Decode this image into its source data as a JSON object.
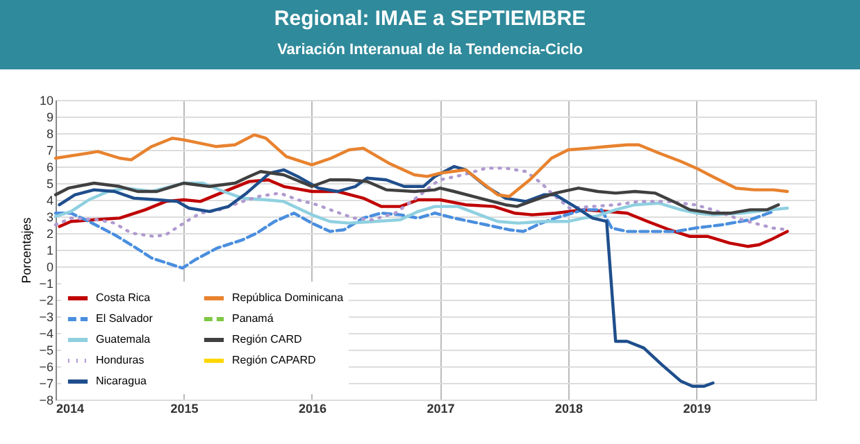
{
  "chart_data": {
    "type": "line",
    "title": "Regional: IMAE a SEPTIEMBRE",
    "subtitle": "Variación Interanual de la Tendencia-Ciclo",
    "ylabel": "Porcentajes",
    "xlim": [
      2014,
      2019.93
    ],
    "xticks": [
      2014,
      2015,
      2016,
      2017,
      2018,
      2019
    ],
    "ylim": [
      -8,
      10
    ],
    "yticks": [
      -8,
      -7,
      -6,
      -5,
      -4,
      -3,
      -2,
      -1,
      0,
      1,
      2,
      3,
      4,
      5,
      6,
      7,
      8,
      9,
      10
    ],
    "grid": true,
    "legend": "bottom left",
    "marker": "none",
    "series": [
      {
        "name": "Costa Rica",
        "color": "#c00000",
        "line_style": "solid",
        "x": [
          2014.03,
          2014.12,
          2014.3,
          2014.5,
          2014.7,
          2014.86,
          2015.0,
          2015.13,
          2015.35,
          2015.51,
          2015.66,
          2015.78,
          2016.0,
          2016.2,
          2016.4,
          2016.54,
          2016.69,
          2016.83,
          2016.96,
          2017.0,
          2017.2,
          2017.42,
          2017.58,
          2017.72,
          2017.9,
          2018.12,
          2018.3,
          2018.46,
          2018.62,
          2018.79,
          2018.95,
          2019.09,
          2019.26,
          2019.4,
          2019.49,
          2019.58,
          2019.71
        ],
        "values": [
          2.4,
          2.7,
          2.8,
          2.9,
          3.4,
          3.9,
          4.0,
          3.9,
          4.6,
          5.1,
          5.2,
          4.8,
          4.5,
          4.5,
          4.1,
          3.6,
          3.6,
          4.0,
          4.0,
          4.0,
          3.7,
          3.6,
          3.2,
          3.1,
          3.2,
          3.4,
          3.3,
          3.2,
          2.7,
          2.2,
          1.8,
          1.8,
          1.4,
          1.2,
          1.3,
          1.6,
          2.1
        ]
      },
      {
        "name": "El Salvador",
        "color": "#4a8ede",
        "line_style": "dashed",
        "x": [
          2014.0,
          2014.12,
          2014.26,
          2014.46,
          2014.61,
          2014.75,
          2014.91,
          2014.99,
          2015.09,
          2015.26,
          2015.46,
          2015.57,
          2015.71,
          2015.86,
          2016.0,
          2016.14,
          2016.25,
          2016.4,
          2016.54,
          2016.69,
          2016.83,
          2016.96,
          2017.11,
          2017.36,
          2017.54,
          2017.65,
          2017.79,
          2017.9,
          2018.12,
          2018.26,
          2018.34,
          2018.46,
          2018.7,
          2018.84,
          2018.99,
          2019.2,
          2019.42,
          2019.6
        ],
        "values": [
          3.2,
          3.2,
          2.7,
          1.9,
          1.2,
          0.5,
          0.1,
          -0.1,
          0.4,
          1.1,
          1.6,
          2.0,
          2.7,
          3.2,
          2.6,
          2.1,
          2.2,
          2.9,
          3.2,
          3.1,
          2.9,
          3.2,
          2.9,
          2.5,
          2.2,
          2.1,
          2.6,
          2.9,
          3.4,
          3.4,
          2.3,
          2.1,
          2.1,
          2.1,
          2.3,
          2.5,
          2.8,
          3.3
        ]
      },
      {
        "name": "Guatemala",
        "color": "#8fd0e0",
        "line_style": "solid",
        "x": [
          2014.0,
          2014.12,
          2014.26,
          2014.41,
          2014.55,
          2014.75,
          2015.0,
          2015.15,
          2015.31,
          2015.46,
          2015.64,
          2015.78,
          2016.0,
          2016.14,
          2016.29,
          2016.49,
          2016.69,
          2016.83,
          2016.96,
          2017.14,
          2017.31,
          2017.45,
          2017.61,
          2017.81,
          2018.0,
          2018.12,
          2018.21,
          2018.37,
          2018.52,
          2018.71,
          2018.88,
          2019.0,
          2019.13,
          2019.35,
          2019.58,
          2019.71
        ],
        "values": [
          3.0,
          3.3,
          4.0,
          4.5,
          4.7,
          4.5,
          5.0,
          5.0,
          4.5,
          4.1,
          4.0,
          3.9,
          3.1,
          2.7,
          2.6,
          2.7,
          2.8,
          3.3,
          3.6,
          3.6,
          3.1,
          2.7,
          2.6,
          2.7,
          2.7,
          2.9,
          3.0,
          3.4,
          3.7,
          3.8,
          3.4,
          3.2,
          3.1,
          3.2,
          3.4,
          3.5
        ]
      },
      {
        "name": "Honduras",
        "color": "#b09ad0",
        "line_style": "dotted",
        "x": [
          2014.0,
          2014.12,
          2014.33,
          2014.46,
          2014.59,
          2014.77,
          2014.86,
          2015.02,
          2015.13,
          2015.28,
          2015.46,
          2015.58,
          2015.75,
          2015.89,
          2016.04,
          2016.18,
          2016.33,
          2016.47,
          2016.65,
          2016.83,
          2016.96,
          2017.0,
          2017.18,
          2017.36,
          2017.51,
          2017.67,
          2017.79,
          2017.87,
          2018.01,
          2018.19,
          2018.37,
          2018.55,
          2018.77,
          2018.99,
          2019.13,
          2019.31,
          2019.45,
          2019.6,
          2019.71
        ],
        "values": [
          2.5,
          2.9,
          2.8,
          2.6,
          2.0,
          1.8,
          1.9,
          2.7,
          3.2,
          3.4,
          3.9,
          4.2,
          4.4,
          4.0,
          3.7,
          3.3,
          2.9,
          2.8,
          3.2,
          4.2,
          5.0,
          5.2,
          5.5,
          5.9,
          5.9,
          5.7,
          5.0,
          4.4,
          3.5,
          3.6,
          3.7,
          3.9,
          3.9,
          3.7,
          3.4,
          2.9,
          2.6,
          2.3,
          2.2
        ]
      },
      {
        "name": "Nicaragua",
        "color": "#1f4e8c",
        "line_style": "solid",
        "x": [
          2014.03,
          2014.15,
          2014.3,
          2014.46,
          2014.61,
          2014.8,
          2014.95,
          2015.04,
          2015.2,
          2015.35,
          2015.49,
          2015.67,
          2015.78,
          2015.89,
          2016.05,
          2016.2,
          2016.34,
          2016.43,
          2016.58,
          2016.72,
          2016.87,
          2016.96,
          2017.11,
          2017.2,
          2017.36,
          2017.51,
          2017.67,
          2017.81,
          2017.9,
          2018.05,
          2018.19,
          2018.3,
          2018.37,
          2018.46,
          2018.59,
          2018.73,
          2018.88,
          2018.97,
          2019.06,
          2019.13
        ],
        "values": [
          3.7,
          4.3,
          4.6,
          4.5,
          4.1,
          4.0,
          3.9,
          3.5,
          3.3,
          3.6,
          4.4,
          5.6,
          5.8,
          5.4,
          4.7,
          4.5,
          4.8,
          5.3,
          5.2,
          4.8,
          4.8,
          5.4,
          6.0,
          5.8,
          4.8,
          4.1,
          3.9,
          4.3,
          4.3,
          3.6,
          2.9,
          2.7,
          -4.5,
          -4.5,
          -4.9,
          -5.9,
          -6.9,
          -7.2,
          -7.2,
          -7.0
        ]
      },
      {
        "name": "República Dominicana",
        "color": "#e8822e",
        "line_style": "solid",
        "x": [
          2014.0,
          2014.25,
          2014.33,
          2014.5,
          2014.59,
          2014.75,
          2014.91,
          2015.0,
          2015.25,
          2015.4,
          2015.55,
          2015.64,
          2015.8,
          2016.0,
          2016.15,
          2016.29,
          2016.4,
          2016.6,
          2016.8,
          2016.9,
          2017.0,
          2017.2,
          2017.45,
          2017.54,
          2017.7,
          2017.87,
          2018.0,
          2018.16,
          2018.3,
          2018.46,
          2018.55,
          2018.71,
          2018.88,
          2019.0,
          2019.15,
          2019.31,
          2019.45,
          2019.6,
          2019.71
        ],
        "values": [
          6.5,
          6.8,
          6.9,
          6.5,
          6.4,
          7.2,
          7.7,
          7.6,
          7.2,
          7.3,
          7.9,
          7.7,
          6.6,
          6.1,
          6.5,
          7.0,
          7.1,
          6.2,
          5.5,
          5.4,
          5.6,
          5.8,
          4.3,
          4.2,
          5.2,
          6.5,
          7.0,
          7.1,
          7.2,
          7.3,
          7.3,
          6.8,
          6.3,
          5.9,
          5.3,
          4.7,
          4.6,
          4.6,
          4.5
        ]
      },
      {
        "name": "Panamá",
        "color": "#7ec843",
        "line_style": "dashed"
      },
      {
        "name": "Región CARD",
        "color": "#404040",
        "line_style": "solid",
        "x": [
          2014.0,
          2014.1,
          2014.3,
          2014.5,
          2014.64,
          2014.79,
          2015.0,
          2015.2,
          2015.4,
          2015.51,
          2015.6,
          2015.78,
          2016.0,
          2016.14,
          2016.29,
          2016.43,
          2016.58,
          2016.8,
          2016.96,
          2017.0,
          2017.11,
          2017.31,
          2017.51,
          2017.6,
          2017.78,
          2017.9,
          2018.08,
          2018.23,
          2018.37,
          2018.52,
          2018.68,
          2018.82,
          2018.95,
          2019.13,
          2019.27,
          2019.42,
          2019.55,
          2019.64
        ],
        "values": [
          4.3,
          4.7,
          5.0,
          4.8,
          4.5,
          4.5,
          5.0,
          4.8,
          5.0,
          5.4,
          5.7,
          5.5,
          4.8,
          5.2,
          5.2,
          5.1,
          4.6,
          4.5,
          4.6,
          4.7,
          4.5,
          4.1,
          3.7,
          3.6,
          4.1,
          4.4,
          4.7,
          4.5,
          4.4,
          4.5,
          4.4,
          3.9,
          3.4,
          3.2,
          3.2,
          3.4,
          3.4,
          3.7
        ]
      },
      {
        "name": "Región CAPARD",
        "color": "#ffd700",
        "line_style": "solid"
      }
    ]
  }
}
